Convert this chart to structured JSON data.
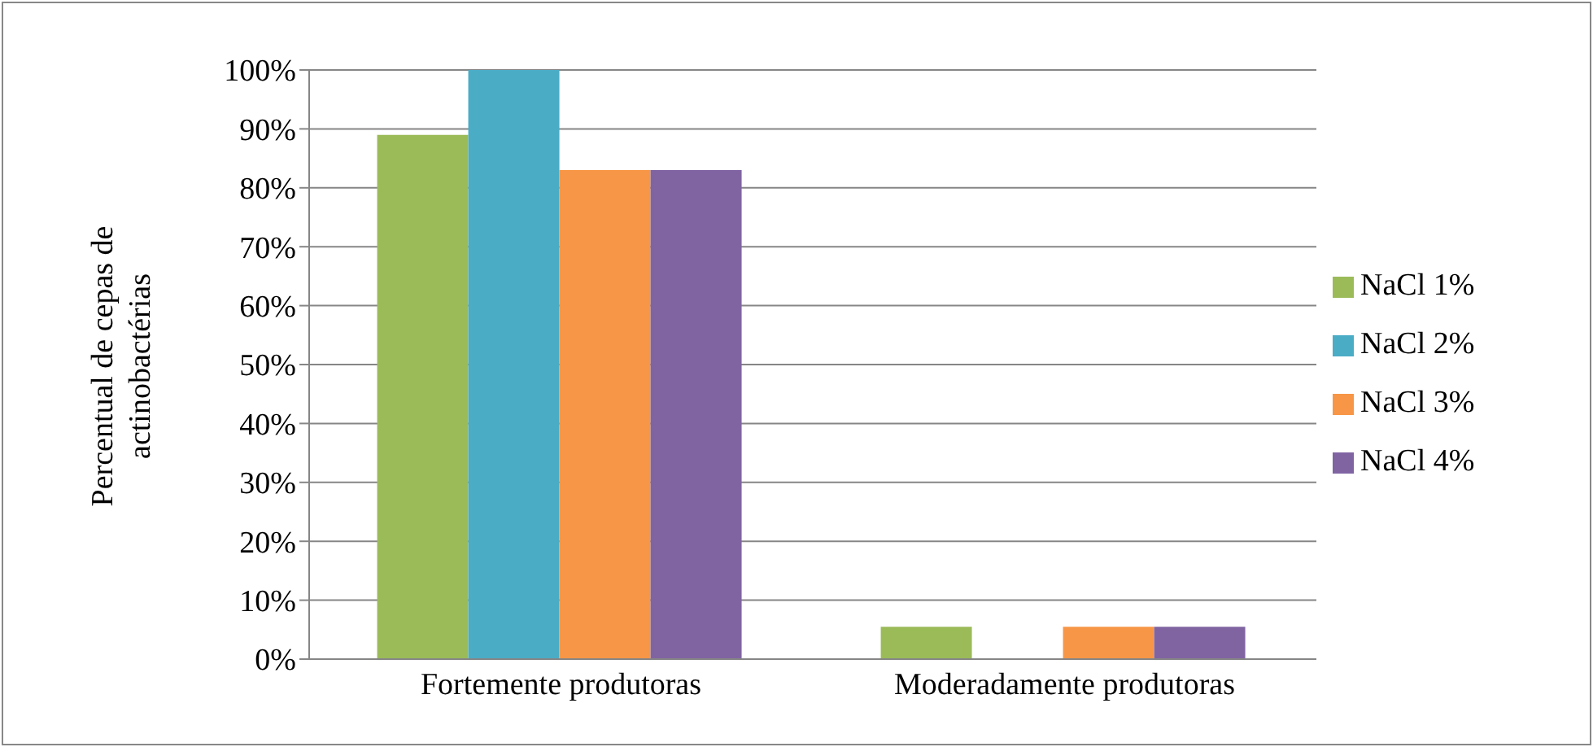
{
  "chart_data": {
    "type": "bar",
    "ylabel": "Percentual de cepas de actinobactérias",
    "categories": [
      "Fortemente produtoras",
      "Moderadamente produtoras"
    ],
    "series": [
      {
        "name": "NaCl 1%",
        "color": "#9bbb59",
        "values": [
          89,
          5.5
        ]
      },
      {
        "name": "NaCl 2%",
        "color": "#4bacc6",
        "values": [
          100,
          0
        ]
      },
      {
        "name": "NaCl 3%",
        "color": "#f79646",
        "values": [
          83,
          5.5
        ]
      },
      {
        "name": "NaCl 4%",
        "color": "#8064a2",
        "values": [
          83,
          5.5
        ]
      }
    ],
    "ylim": [
      0,
      100
    ],
    "yticks": [
      {
        "value": 0,
        "label": "0%"
      },
      {
        "value": 10,
        "label": "10%"
      },
      {
        "value": 20,
        "label": "20%"
      },
      {
        "value": 30,
        "label": "30%"
      },
      {
        "value": 40,
        "label": "40%"
      },
      {
        "value": 50,
        "label": "50%"
      },
      {
        "value": 60,
        "label": "60%"
      },
      {
        "value": 70,
        "label": "70%"
      },
      {
        "value": 80,
        "label": "80%"
      },
      {
        "value": 90,
        "label": "90%"
      },
      {
        "value": 100,
        "label": "100%"
      }
    ],
    "grid": "y",
    "legend": "right"
  }
}
